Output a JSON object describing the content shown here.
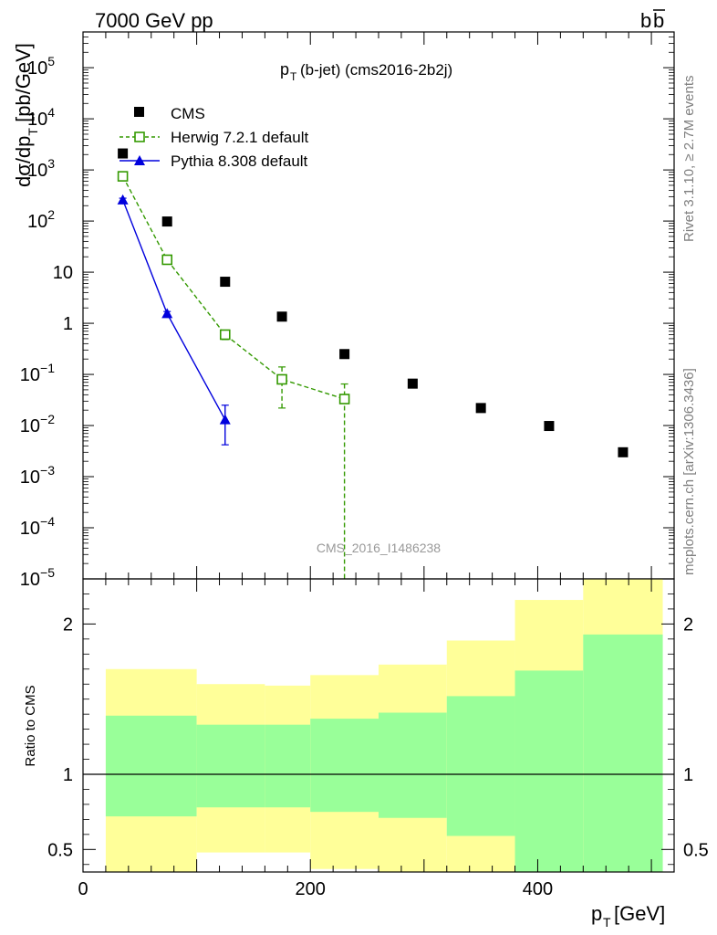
{
  "header": {
    "left": "7000 GeV pp",
    "right_b": "b",
    "right_bbar": "b"
  },
  "chart_data": {
    "type": "scatter",
    "title": "(b-jet) (cms2016-2b2j)",
    "title_p": "p",
    "title_sub": "T",
    "watermark": "CMS_2016_I1486238",
    "side_rivet": "Rivet 3.1.10, ≥ 2.7M events",
    "side_mcplots": "mcplots.cern.ch [arXiv:1306.3436]",
    "ylabel_main_a": "dσ/dp",
    "ylabel_main_sub": "T",
    "ylabel_main_b": " [pb/GeV]",
    "ylabel_ratio": "Ratio to CMS",
    "xlabel_p": "p",
    "xlabel_sub": "T",
    "xlabel_unit": " [GeV]",
    "xlim": [
      0,
      520
    ],
    "ylim_main": [
      1e-05,
      500000
    ],
    "ylog_main": true,
    "ylim_ratio": [
      0.35,
      2.3
    ],
    "xticks": [
      {
        "value": 0,
        "label": "0"
      },
      {
        "value": 200,
        "label": "200"
      },
      {
        "value": 400,
        "label": "400"
      }
    ],
    "yticks_main": [
      {
        "value": 100000,
        "base": "10",
        "exp": "5"
      },
      {
        "value": 10000,
        "base": "10",
        "exp": "4"
      },
      {
        "value": 1000,
        "base": "10",
        "exp": "3"
      },
      {
        "value": 100,
        "base": "10",
        "exp": "2"
      },
      {
        "value": 10,
        "base": "10",
        "exp": ""
      },
      {
        "value": 1,
        "base": "1",
        "exp": ""
      },
      {
        "value": 0.1,
        "base": "10",
        "exp": "−1"
      },
      {
        "value": 0.01,
        "base": "10",
        "exp": "−2"
      },
      {
        "value": 0.001,
        "base": "10",
        "exp": "−3"
      },
      {
        "value": 0.0001,
        "base": "10",
        "exp": "−4"
      },
      {
        "value": 1e-05,
        "base": "10",
        "exp": "−5"
      }
    ],
    "yticks_ratio": [
      {
        "value": 0.5,
        "label": "0.5"
      },
      {
        "value": 1,
        "label": "1"
      },
      {
        "value": 2,
        "label": "2"
      }
    ],
    "legend_position": "top-left",
    "series": [
      {
        "name": "CMS",
        "color": "#000000",
        "marker": "filled-square",
        "points": [
          {
            "x": 35,
            "y": 2100
          },
          {
            "x": 74,
            "y": 98
          },
          {
            "x": 125,
            "y": 6.5
          },
          {
            "x": 175,
            "y": 1.35
          },
          {
            "x": 230,
            "y": 0.25
          },
          {
            "x": 290,
            "y": 0.066
          },
          {
            "x": 350,
            "y": 0.022
          },
          {
            "x": 410,
            "y": 0.0098
          },
          {
            "x": 475,
            "y": 0.003
          }
        ]
      },
      {
        "name": "Herwig 7.2.1 default",
        "color": "#339900",
        "marker": "open-square",
        "line": "dashed",
        "points": [
          {
            "x": 35,
            "y": 750,
            "ylo": 680,
            "yhi": 820
          },
          {
            "x": 74,
            "y": 17.5,
            "ylo": 15.5,
            "yhi": 19.5
          },
          {
            "x": 125,
            "y": 0.6,
            "ylo": 0.48,
            "yhi": 0.72
          },
          {
            "x": 175,
            "y": 0.08,
            "ylo": 0.022,
            "yhi": 0.14
          },
          {
            "x": 230,
            "y": 0.033,
            "ylo": 1e-06,
            "yhi": 0.065
          }
        ]
      },
      {
        "name": "Pythia 8.308 default",
        "color": "#0000dd",
        "marker": "filled-triangle",
        "line": "solid",
        "points": [
          {
            "x": 35,
            "y": 260,
            "ylo": 240,
            "yhi": 280
          },
          {
            "x": 74,
            "y": 1.55,
            "ylo": 1.4,
            "yhi": 1.7
          },
          {
            "x": 125,
            "y": 0.013,
            "ylo": 0.0042,
            "yhi": 0.025
          }
        ]
      }
    ],
    "ratio_bands": [
      {
        "x0": 20,
        "x1": 100,
        "inner": [
          0.72,
          1.39
        ],
        "outer": [
          0.3,
          1.7
        ]
      },
      {
        "x0": 100,
        "x1": 160,
        "inner": [
          0.78,
          1.33
        ],
        "outer": [
          0.48,
          1.6
        ]
      },
      {
        "x0": 160,
        "x1": 200,
        "inner": [
          0.78,
          1.33
        ],
        "outer": [
          0.48,
          1.59
        ]
      },
      {
        "x0": 200,
        "x1": 260,
        "inner": [
          0.75,
          1.37
        ],
        "outer": [
          0.37,
          1.66
        ]
      },
      {
        "x0": 260,
        "x1": 320,
        "inner": [
          0.71,
          1.41
        ],
        "outer": [
          0.3,
          1.73
        ]
      },
      {
        "x0": 320,
        "x1": 380,
        "inner": [
          0.59,
          1.52
        ],
        "outer": [
          0.3,
          1.89
        ]
      },
      {
        "x0": 380,
        "x1": 440,
        "inner": [
          0.3,
          1.69
        ],
        "outer": [
          0.3,
          2.16
        ]
      },
      {
        "x0": 440,
        "x1": 510,
        "inner": [
          0.3,
          1.93
        ],
        "outer": [
          0.3,
          2.35
        ]
      }
    ],
    "band_colors": {
      "inner": "#99ff99",
      "outer": "#ffff99"
    }
  }
}
